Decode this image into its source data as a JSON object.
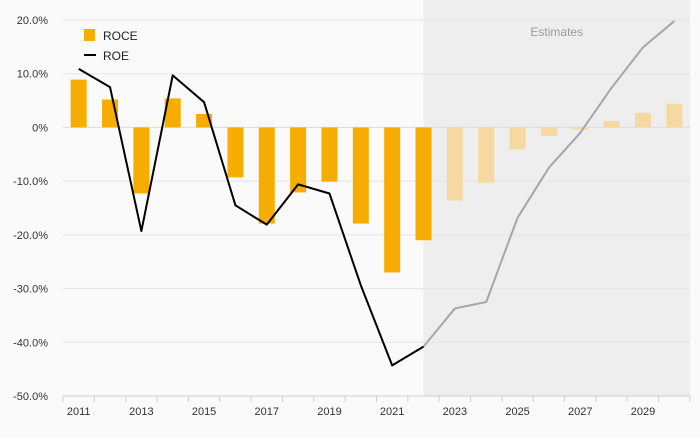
{
  "chart_data": {
    "type": "bar+line",
    "categories": [
      "2011",
      "2012",
      "2013",
      "2014",
      "2015",
      "2016",
      "2017",
      "2018",
      "2019",
      "2020",
      "2021",
      "2022",
      "2023",
      "2024",
      "2025",
      "2026",
      "2027",
      "2028",
      "2029",
      "2030"
    ],
    "x_tick_labels": [
      "2011",
      "2013",
      "2015",
      "2017",
      "2019",
      "2021",
      "2023",
      "2025",
      "2027",
      "2029"
    ],
    "ylim": [
      -50,
      20
    ],
    "y_ticks": [
      20,
      10,
      0,
      -10,
      -20,
      -30,
      -40,
      -50
    ],
    "y_tick_labels": [
      "20.0%",
      "10.0%",
      "0%",
      "-10.0%",
      "-20.0%",
      "-30.0%",
      "-40.0%",
      "-50.0%"
    ],
    "estimates_label": "Estimates",
    "estimates_start_year": "2022",
    "grid": true,
    "legend_position": "top-left",
    "series": [
      {
        "name": "ROCE",
        "type": "bar",
        "color": "#f7ad00",
        "estimate_color": "#f5d9a0",
        "values": [
          8.9,
          5.2,
          -12.3,
          5.4,
          2.5,
          -9.3,
          -17.9,
          -12.1,
          -10.1,
          -17.9,
          -27.0,
          -21.0,
          -13.6,
          -10.3,
          -4.1,
          -1.6,
          -0.4,
          1.2,
          2.7,
          4.4
        ]
      },
      {
        "name": "ROE",
        "type": "line",
        "color": "#000000",
        "estimate_color": "#a6a6a6",
        "values": [
          10.9,
          7.5,
          -19.3,
          9.7,
          4.7,
          -14.5,
          -18.1,
          -10.6,
          -12.3,
          -29.4,
          -44.3,
          -40.8,
          -33.7,
          -32.5,
          -16.8,
          -7.5,
          -1.0,
          7.4,
          14.9,
          19.8
        ]
      }
    ]
  }
}
